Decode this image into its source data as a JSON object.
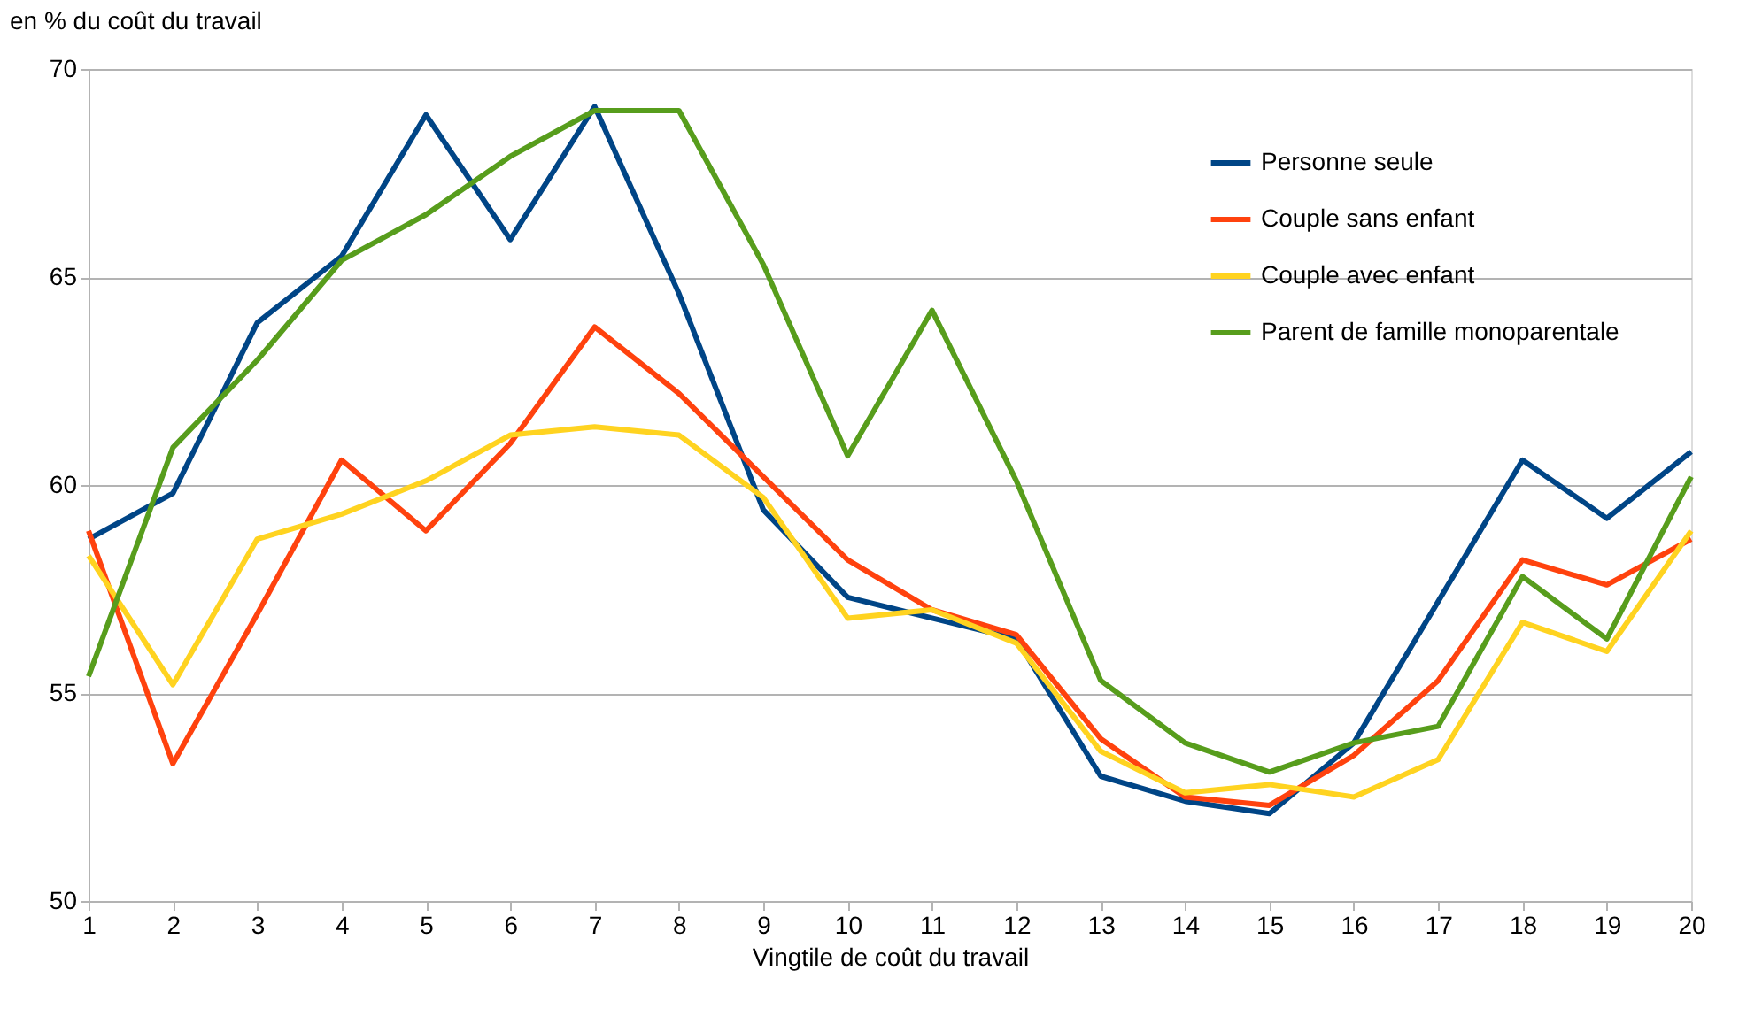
{
  "chart_data": {
    "type": "line",
    "xlabel": "Vingtile de coût du travail",
    "ylabel": "en % du coût du travail",
    "x": [
      1,
      2,
      3,
      4,
      5,
      6,
      7,
      8,
      9,
      10,
      11,
      12,
      13,
      14,
      15,
      16,
      17,
      18,
      19,
      20
    ],
    "xlim": [
      1,
      20
    ],
    "xticks": [
      1,
      2,
      3,
      4,
      5,
      6,
      7,
      8,
      9,
      10,
      11,
      12,
      13,
      14,
      15,
      16,
      17,
      18,
      19,
      20
    ],
    "ylim": [
      50,
      70
    ],
    "yticks": [
      50,
      55,
      60,
      65,
      70
    ],
    "grid": "y",
    "legend": "top right",
    "marker": "none",
    "line_style": "solid",
    "series": [
      {
        "name": "Personne seule",
        "color": "#004586",
        "values": [
          58.7,
          59.8,
          63.9,
          65.5,
          68.9,
          65.9,
          69.1,
          64.6,
          59.4,
          57.3,
          56.8,
          56.3,
          53.0,
          52.4,
          52.1,
          53.8,
          57.2,
          60.6,
          59.2,
          60.8
        ]
      },
      {
        "name": "Couple sans enfant",
        "color": "#ff420e",
        "values": [
          58.9,
          53.3,
          56.9,
          60.6,
          58.9,
          61.0,
          63.8,
          62.2,
          60.2,
          58.2,
          57.0,
          56.4,
          53.9,
          52.5,
          52.3,
          53.5,
          55.3,
          58.2,
          57.6,
          58.7
        ]
      },
      {
        "name": "Couple avec enfant",
        "color": "#ffd320",
        "values": [
          58.3,
          55.2,
          58.7,
          59.3,
          60.1,
          61.2,
          61.4,
          61.2,
          59.7,
          56.8,
          57.0,
          56.2,
          53.6,
          52.6,
          52.8,
          52.5,
          53.4,
          56.7,
          56.0,
          58.9
        ]
      },
      {
        "name": "Parent de famille monoparentale",
        "color": "#579d1c",
        "values": [
          55.4,
          60.9,
          63.0,
          65.4,
          66.5,
          67.9,
          69.0,
          69.0,
          65.3,
          60.7,
          64.2,
          60.1,
          55.3,
          53.8,
          53.1,
          53.8,
          54.2,
          57.8,
          56.3,
          60.2
        ]
      }
    ]
  }
}
